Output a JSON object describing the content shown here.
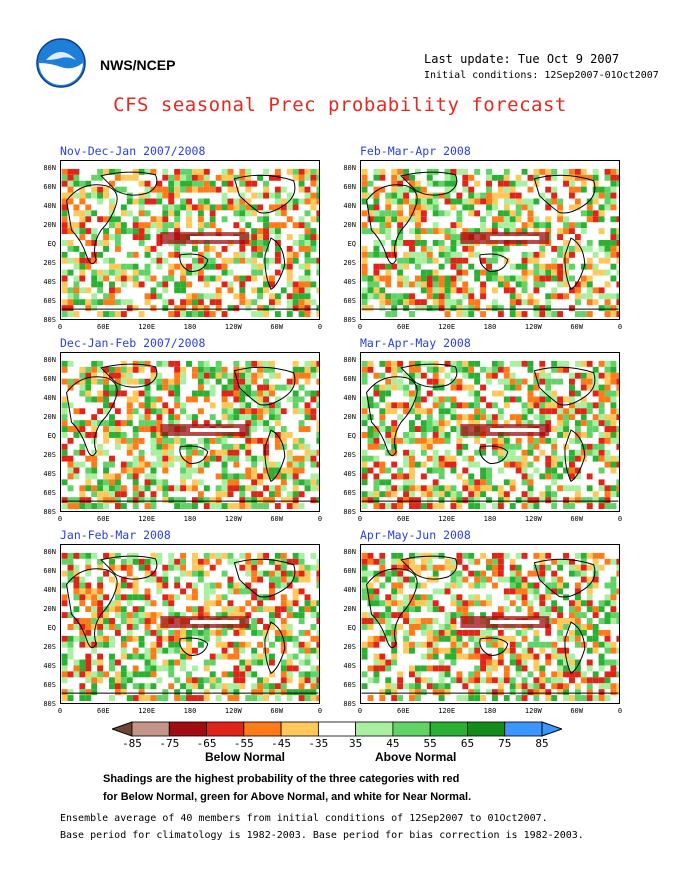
{
  "header": {
    "org": "NWS/NCEP",
    "last_update": "Last update: Tue Oct 9 2007",
    "initial_conditions": "Initial conditions: 12Sep2007-01Oct2007",
    "title": "CFS seasonal Prec probability forecast"
  },
  "panels": [
    {
      "title": "Nov-Dec-Jan 2007/2008"
    },
    {
      "title": "Feb-Mar-Apr 2008"
    },
    {
      "title": "Dec-Jan-Feb 2007/2008"
    },
    {
      "title": "Mar-Apr-May 2008"
    },
    {
      "title": "Jan-Feb-Mar 2008"
    },
    {
      "title": "Apr-May-Jun 2008"
    }
  ],
  "axes": {
    "lat_labels": [
      "80N",
      "60N",
      "40N",
      "20N",
      "EQ",
      "20S",
      "40S",
      "60S",
      "80S"
    ],
    "lon_labels": [
      "0",
      "60E",
      "120E",
      "180",
      "120W",
      "60W",
      "0"
    ]
  },
  "legend": {
    "labels": [
      "-85",
      "-75",
      "-65",
      "-55",
      "-45",
      "-35",
      "35",
      "45",
      "55",
      "65",
      "75",
      "85"
    ],
    "colors": [
      "#6e4634",
      "#c49488",
      "#a00c10",
      "#e02418",
      "#ff7a18",
      "#ffc85a",
      "#ffffff",
      "#a8f0a0",
      "#60d266",
      "#2cb034",
      "#148c1c",
      "#3c96ff",
      "#3c96ff"
    ],
    "below_label": "Below Normal",
    "above_label": "Above Normal"
  },
  "notes": {
    "line1": "Shadings are the highest probability of the three categories with red",
    "line2": "for Below Normal, green for Above Normal, and white for Near Normal.",
    "line3": "Ensemble average of 40 members from initial conditions of 12Sep2007 to 01Oct2007.",
    "line4": "Base period for climatology is 1982-2003. Base period for bias correction is 1982-2003."
  }
}
